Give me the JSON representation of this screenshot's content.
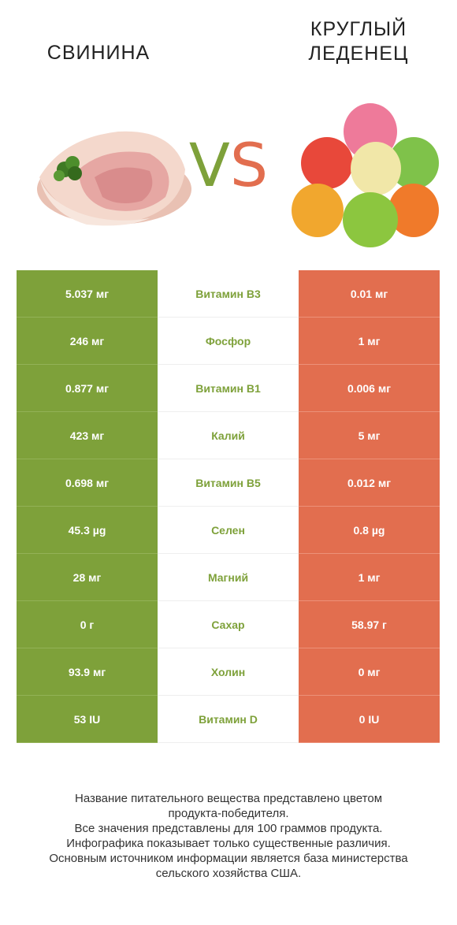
{
  "header": {
    "left_title": "СВИНИНА",
    "right_title_line1": "КРУГЛЫЙ",
    "right_title_line2": "ЛЕДЕНЕЦ",
    "vs_v": "V",
    "vs_s": "S"
  },
  "colors": {
    "winner_left": "#7ea13a",
    "winner_right": "#e26e4f"
  },
  "images": {
    "left": "pork-chop-image",
    "right": "gumdrop-candies-image"
  },
  "rows": [
    {
      "left": "5.037 мг",
      "nutrient": "Витамин B3",
      "right": "0.01 мг"
    },
    {
      "left": "246 мг",
      "nutrient": "Фосфор",
      "right": "1 мг"
    },
    {
      "left": "0.877 мг",
      "nutrient": "Витамин B1",
      "right": "0.006 мг"
    },
    {
      "left": "423 мг",
      "nutrient": "Калий",
      "right": "5 мг"
    },
    {
      "left": "0.698 мг",
      "nutrient": "Витамин B5",
      "right": "0.012 мг"
    },
    {
      "left": "45.3 µg",
      "nutrient": "Селен",
      "right": "0.8 µg"
    },
    {
      "left": "28 мг",
      "nutrient": "Магний",
      "right": "1 мг"
    },
    {
      "left": "0 г",
      "nutrient": "Сахар",
      "right": "58.97 г"
    },
    {
      "left": "93.9 мг",
      "nutrient": "Холин",
      "right": "0 мг"
    },
    {
      "left": "53 IU",
      "nutrient": "Витамин D",
      "right": "0 IU"
    }
  ],
  "footer": {
    "line1": "Название питательного вещества представлено цветом",
    "line2": "продукта-победителя.",
    "line3": "Все значения представлены для 100 граммов продукта.",
    "line4": "Инфографика показывает только существенные различия.",
    "line5": "Основным источником информации является база министерства",
    "line6": "сельского хозяйства США."
  }
}
